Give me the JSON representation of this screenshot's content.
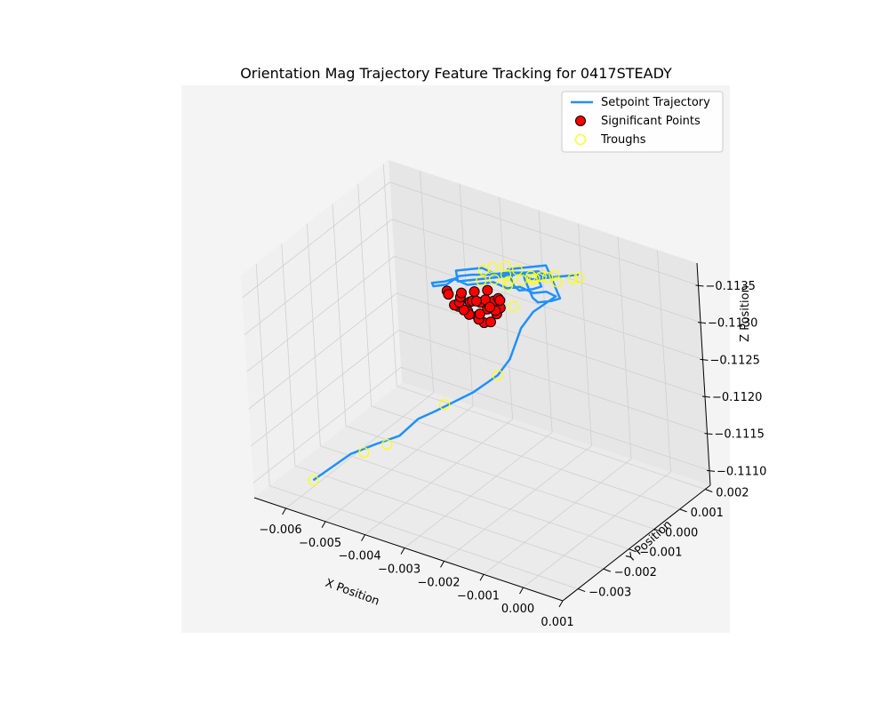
{
  "chart_data": {
    "type": "line3d",
    "title": "Orientation Mag Trajectory Feature Tracking for 0417STEADY",
    "xlabel": "X Position",
    "ylabel": "Y Position",
    "zlabel": "Z Position",
    "xlim": [
      -0.0068,
      0.001
    ],
    "ylim": [
      -0.0036,
      0.0022
    ],
    "zlim": [
      -0.1108,
      -0.1138
    ],
    "x_ticks": [
      {
        "value": -0.006,
        "label": "−0.006"
      },
      {
        "value": -0.005,
        "label": "−0.005"
      },
      {
        "value": -0.004,
        "label": "−0.004"
      },
      {
        "value": -0.003,
        "label": "−0.003"
      },
      {
        "value": -0.002,
        "label": "−0.002"
      },
      {
        "value": -0.001,
        "label": "−0.001"
      },
      {
        "value": 0.0,
        "label": "0.000"
      },
      {
        "value": 0.001,
        "label": "0.001"
      }
    ],
    "y_ticks": [
      {
        "value": -0.003,
        "label": "−0.003"
      },
      {
        "value": -0.002,
        "label": "−0.002"
      },
      {
        "value": -0.001,
        "label": "−0.001"
      },
      {
        "value": 0.0,
        "label": "0.000"
      },
      {
        "value": 0.001,
        "label": "0.001"
      },
      {
        "value": 0.002,
        "label": "0.002"
      }
    ],
    "z_ticks": [
      {
        "value": -0.111,
        "label": "−0.1110"
      },
      {
        "value": -0.1115,
        "label": "−0.1115"
      },
      {
        "value": -0.112,
        "label": "−0.1120"
      },
      {
        "value": -0.1125,
        "label": "−0.1125"
      },
      {
        "value": -0.113,
        "label": "−0.1130"
      },
      {
        "value": -0.1135,
        "label": "−0.1135"
      }
    ],
    "grid": true,
    "legend": {
      "placement": "top-right",
      "entries": [
        {
          "label": "Setpoint Trajectory",
          "kind": "line",
          "color": "#1e90ff"
        },
        {
          "label": "Significant Points",
          "kind": "marker",
          "color": "#ff0000",
          "edge": "#000000"
        },
        {
          "label": "Troughs",
          "kind": "marker-hollow",
          "color": "#ffff00"
        }
      ]
    },
    "series": [
      {
        "name": "Setpoint Trajectory",
        "style": "line",
        "color": "#1e90ff",
        "x": [
          -0.0058,
          -0.0056,
          -0.0052,
          -0.0048,
          -0.0044,
          -0.0041,
          -0.0038,
          -0.0035,
          -0.0032,
          -0.003,
          -0.0028,
          -0.0026,
          -0.0025,
          -0.0024,
          -0.0022,
          -0.002,
          -0.0018,
          -0.0019,
          -0.0021,
          -0.0023,
          -0.0025,
          -0.0027,
          -0.0029,
          -0.0031,
          -0.0033,
          -0.0034,
          -0.0036,
          -0.0035,
          -0.0033,
          -0.0031,
          -0.0029,
          -0.0026,
          -0.0023,
          -0.0021,
          -0.0019,
          -0.0017,
          -0.0016,
          -0.0018,
          -0.002,
          -0.0023,
          -0.0025,
          -0.0027,
          -0.0029,
          -0.0031,
          -0.003,
          -0.0028,
          -0.0026,
          -0.0024,
          -0.0022,
          -0.0021,
          -0.0019,
          -0.0017,
          -0.0015,
          -0.0013,
          -0.0012,
          -0.0014,
          -0.0016,
          -0.0018,
          -0.002,
          -0.0022,
          -0.0021,
          -0.0019,
          -0.0017,
          -0.0015,
          -0.0014,
          -0.0016,
          -0.0018,
          -0.002,
          -0.0019,
          -0.0017,
          -0.0015,
          -0.0013,
          -0.0011,
          -0.0009,
          -0.0008,
          -0.001,
          -0.0012,
          -0.0014,
          -0.0016,
          -0.0018,
          -0.002,
          -0.0022,
          -0.0024
        ],
        "y": [
          -0.0028,
          -0.0026,
          -0.0022,
          -0.0018,
          -0.0015,
          -0.0012,
          -0.001,
          -0.0007,
          -0.0004,
          -0.0002,
          0.0,
          0.0002,
          0.0003,
          0.0004,
          0.0006,
          0.0008,
          0.0009,
          0.0007,
          0.0005,
          0.0003,
          0.0001,
          -0.0001,
          -0.0003,
          -0.0005,
          -0.0007,
          -0.0009,
          -0.0011,
          -0.0012,
          -0.001,
          -0.0008,
          -0.0006,
          -0.0004,
          -0.0002,
          0.0,
          0.0002,
          0.0004,
          0.0005,
          0.0003,
          0.0001,
          -0.0001,
          -0.0003,
          -0.0005,
          -0.0007,
          -0.0009,
          -0.001,
          -0.0008,
          -0.0006,
          -0.0004,
          -0.0002,
          0.0,
          0.0002,
          0.0004,
          0.0006,
          0.0008,
          0.0009,
          0.0007,
          0.0005,
          0.0003,
          0.0001,
          -0.0001,
          -0.0003,
          -0.0005,
          -0.0006,
          -0.0004,
          -0.0002,
          0.0,
          0.0002,
          0.0001,
          -0.0001,
          -0.0003,
          -0.0005,
          -0.0007,
          -0.0008,
          -0.0006,
          -0.0004,
          -0.0002,
          0.0,
          0.0002,
          0.0004,
          0.0006,
          0.0004,
          0.0002,
          0.0
        ],
        "z": [
          -0.111,
          -0.1111,
          -0.1113,
          -0.1114,
          -0.1115,
          -0.1117,
          -0.1118,
          -0.1119,
          -0.112,
          -0.1121,
          -0.1122,
          -0.1124,
          -0.1126,
          -0.1128,
          -0.113,
          -0.1131,
          -0.1132,
          -0.1133,
          -0.1133,
          -0.1134,
          -0.1134,
          -0.1135,
          -0.1135,
          -0.1135,
          -0.1136,
          -0.1136,
          -0.1136,
          -0.1136,
          -0.1136,
          -0.1137,
          -0.1137,
          -0.1137,
          -0.1137,
          -0.1137,
          -0.1136,
          -0.1136,
          -0.1136,
          -0.1137,
          -0.1137,
          -0.1137,
          -0.1137,
          -0.1138,
          -0.1138,
          -0.1138,
          -0.1137,
          -0.1137,
          -0.1137,
          -0.1137,
          -0.1137,
          -0.1137,
          -0.1137,
          -0.1136,
          -0.1136,
          -0.1136,
          -0.1136,
          -0.1136,
          -0.1136,
          -0.1137,
          -0.1137,
          -0.1137,
          -0.1137,
          -0.1137,
          -0.1137,
          -0.1137,
          -0.1137,
          -0.1137,
          -0.1137,
          -0.1137,
          -0.1137,
          -0.1137,
          -0.1137,
          -0.1137,
          -0.1137,
          -0.1137,
          -0.1137,
          -0.1137,
          -0.1137,
          -0.1137,
          -0.1137,
          -0.1137,
          -0.1137,
          -0.1137,
          -0.1137
        ]
      },
      {
        "name": "Significant Points",
        "style": "scatter",
        "color": "#ff0000",
        "x": [
          -0.003,
          -0.0029,
          -0.0028,
          -0.0031,
          -0.003,
          -0.0029,
          -0.0032,
          -0.0031,
          -0.0033,
          -0.0032,
          -0.003,
          -0.0028,
          -0.0027,
          -0.0029,
          -0.0031,
          -0.0033,
          -0.0034,
          -0.0032,
          -0.003,
          -0.0028,
          -0.0026,
          -0.0027,
          -0.0029,
          -0.0031,
          -0.0033,
          -0.0035,
          -0.0034,
          -0.0032,
          -0.003,
          -0.0028
        ],
        "y": [
          -0.0001,
          0.0,
          0.0001,
          -0.0002,
          -0.0003,
          -0.0001,
          -0.0004,
          -0.0005,
          -0.0006,
          -0.0003,
          -0.0002,
          0.0,
          0.0001,
          0.0002,
          -0.0001,
          -0.0004,
          -0.0006,
          -0.0007,
          -0.0005,
          -0.0003,
          -0.0001,
          0.0001,
          0.0,
          -0.0002,
          -0.0005,
          -0.0007,
          -0.0008,
          -0.0006,
          -0.0004,
          -0.0002
        ],
        "z": [
          -0.1129,
          -0.1129,
          -0.113,
          -0.113,
          -0.113,
          -0.1131,
          -0.1131,
          -0.1131,
          -0.1132,
          -0.1132,
          -0.1132,
          -0.1132,
          -0.1131,
          -0.113,
          -0.113,
          -0.1131,
          -0.1132,
          -0.1133,
          -0.1133,
          -0.1133,
          -0.1133,
          -0.1132,
          -0.1131,
          -0.1132,
          -0.1133,
          -0.1134,
          -0.1134,
          -0.1134,
          -0.1134,
          -0.1134
        ]
      },
      {
        "name": "Troughs",
        "style": "scatter-hollow",
        "color": "#ffff00",
        "x": [
          -0.0058,
          -0.005,
          -0.0046,
          -0.0036,
          -0.0028,
          -0.0025,
          -0.0022,
          -0.0024,
          -0.0026,
          -0.0028,
          -0.0027,
          -0.0025,
          -0.0023,
          -0.0021,
          -0.0019,
          -0.0018,
          -0.002,
          -0.0022,
          -0.0016,
          -0.0014,
          -0.0015,
          -0.0017,
          -0.0019,
          -0.0012,
          -0.0011
        ],
        "y": [
          -0.0028,
          -0.002,
          -0.0017,
          -0.0009,
          0.0,
          0.0003,
          -0.0003,
          -0.0005,
          -0.0007,
          -0.0003,
          -0.0001,
          0.0001,
          -0.0002,
          -0.0004,
          0.0002,
          0.0004,
          0.0003,
          0.0001,
          0.0006,
          0.0004,
          0.0002,
          0.0,
          -0.0002,
          0.0007,
          0.0008
        ],
        "z": [
          -0.111,
          -0.1113,
          -0.1114,
          -0.1119,
          -0.1122,
          -0.1131,
          -0.1136,
          -0.1137,
          -0.1137,
          -0.1137,
          -0.1137,
          -0.1137,
          -0.1137,
          -0.1137,
          -0.1136,
          -0.1136,
          -0.1136,
          -0.1137,
          -0.1136,
          -0.1136,
          -0.1137,
          -0.1137,
          -0.1137,
          -0.1136,
          -0.1136
        ]
      }
    ]
  }
}
